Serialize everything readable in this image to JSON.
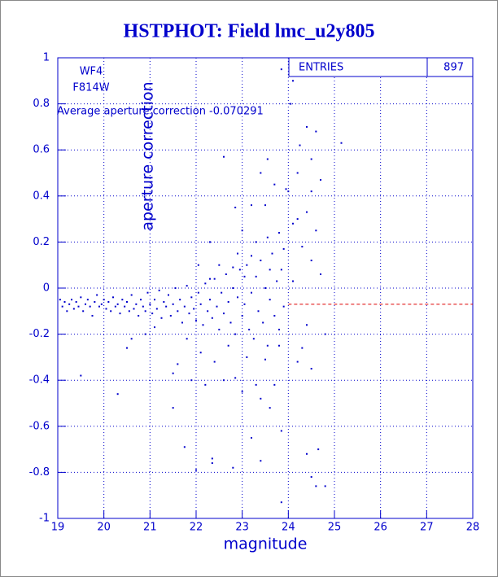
{
  "chart_data": {
    "type": "scatter",
    "title": "HSTPHOT: Field lmc_u2y805",
    "xlabel": "magnitude",
    "ylabel": "aperture correction",
    "annotations": [
      "WF4",
      "F814W",
      "Average aperture correction -0.070291"
    ],
    "stats": {
      "label": "ENTRIES",
      "value": 897
    },
    "mean_line": {
      "value": -0.070291,
      "x_start": 24,
      "color": "#dd0000"
    },
    "xlim": [
      19,
      28
    ],
    "ylim": [
      -1,
      1
    ],
    "xticks": [
      19,
      20,
      21,
      22,
      23,
      24,
      25,
      26,
      27,
      28
    ],
    "yticks": [
      -1,
      -0.8,
      -0.6,
      -0.4,
      -0.2,
      0,
      0.2,
      0.4,
      0.6,
      0.8,
      1
    ],
    "grid": true,
    "series": [
      {
        "color": "#0000cc",
        "x": [
          19.05,
          19.1,
          19.15,
          19.2,
          19.25,
          19.3,
          19.35,
          19.4,
          19.45,
          19.5,
          19.55,
          19.6,
          19.65,
          19.7,
          19.75,
          19.8,
          19.85,
          19.9,
          19.95,
          20.0,
          20.05,
          20.1,
          20.15,
          20.2,
          20.25,
          20.3,
          20.35,
          20.4,
          20.45,
          20.5,
          20.55,
          20.6,
          20.65,
          20.7,
          20.75,
          20.8,
          20.85,
          20.9,
          20.95,
          21.0,
          21.05,
          21.1,
          21.15,
          21.2,
          21.25,
          21.3,
          21.35,
          21.4,
          21.45,
          21.5,
          21.55,
          21.6,
          21.65,
          21.7,
          21.75,
          21.8,
          21.85,
          21.9,
          21.95,
          22.0,
          22.05,
          22.1,
          22.15,
          22.2,
          22.25,
          22.3,
          22.35,
          22.4,
          22.45,
          22.5,
          22.55,
          22.6,
          22.65,
          22.7,
          22.75,
          22.8,
          22.85,
          22.9,
          22.95,
          23.0,
          23.05,
          23.1,
          23.15,
          23.2,
          23.25,
          23.3,
          23.35,
          23.4,
          23.45,
          23.5,
          23.55,
          23.6,
          23.65,
          23.7,
          23.75,
          23.8,
          23.85,
          23.9,
          23.85,
          24.1,
          24.05,
          24.4,
          24.6,
          24.25,
          25.15,
          22.6,
          23.55,
          24.5,
          24.2,
          23.4,
          24.7,
          23.7,
          23.95,
          24.0,
          24.5,
          23.2,
          23.5,
          24.4,
          22.85,
          24.2,
          24.1,
          23.0,
          23.8,
          24.6,
          23.3,
          23.55,
          22.3,
          24.3,
          23.9,
          22.9,
          23.2,
          24.5,
          22.05,
          22.5,
          23.6,
          22.8,
          24.7,
          24.1,
          23.05,
          22.3,
          20.3,
          21.5,
          21.75,
          22.35,
          22.35,
          22.8,
          23.4,
          23.2,
          23.85,
          24.4,
          24.65,
          24.5,
          24.6,
          24.8,
          23.85,
          22.0,
          22.6,
          22.85,
          21.9,
          22.2,
          21.5,
          21.6,
          20.6,
          20.5,
          19.5,
          20.9,
          21.1,
          23.0,
          23.4,
          23.6,
          23.3,
          23.1,
          23.5,
          23.8,
          24.2,
          24.5,
          24.8,
          24.4,
          22.4,
          22.7,
          22.1,
          21.8,
          23.7,
          24.3
        ],
        "y": [
          -0.05,
          -0.08,
          -0.06,
          -0.1,
          -0.07,
          -0.05,
          -0.09,
          -0.06,
          -0.08,
          -0.04,
          -0.1,
          -0.07,
          -0.05,
          -0.08,
          -0.12,
          -0.06,
          -0.03,
          -0.08,
          -0.07,
          -0.05,
          -0.09,
          -0.06,
          -0.1,
          -0.04,
          -0.08,
          -0.07,
          -0.11,
          -0.05,
          -0.08,
          -0.06,
          -0.1,
          -0.03,
          -0.09,
          -0.07,
          -0.12,
          -0.05,
          -0.08,
          -0.1,
          -0.02,
          -0.07,
          -0.11,
          -0.05,
          -0.09,
          -0.01,
          -0.13,
          -0.06,
          -0.08,
          -0.03,
          -0.12,
          -0.07,
          0.0,
          -0.1,
          -0.05,
          -0.15,
          -0.08,
          0.01,
          -0.11,
          -0.04,
          -0.09,
          -0.14,
          -0.02,
          -0.07,
          -0.16,
          0.02,
          -0.1,
          -0.05,
          -0.13,
          0.04,
          -0.08,
          -0.18,
          -0.02,
          -0.11,
          0.06,
          -0.06,
          -0.15,
          0.0,
          -0.2,
          -0.04,
          0.08,
          -0.12,
          -0.07,
          0.1,
          -0.18,
          -0.02,
          -0.22,
          0.05,
          -0.1,
          0.12,
          -0.15,
          0.0,
          -0.25,
          -0.05,
          0.15,
          -0.12,
          0.03,
          -0.18,
          0.08,
          -0.08,
          0.95,
          0.9,
          0.8,
          0.7,
          0.68,
          0.62,
          0.63,
          0.57,
          0.56,
          0.56,
          0.5,
          0.5,
          0.47,
          0.45,
          0.43,
          0.42,
          0.42,
          0.36,
          0.36,
          0.33,
          0.35,
          0.3,
          0.28,
          0.25,
          0.24,
          0.25,
          0.2,
          0.22,
          0.2,
          0.18,
          0.17,
          0.15,
          0.14,
          0.12,
          0.1,
          0.1,
          0.08,
          0.09,
          0.06,
          0.03,
          0.05,
          0.04,
          -0.46,
          -0.52,
          -0.69,
          -0.74,
          -0.76,
          -0.78,
          -0.75,
          -0.65,
          -0.62,
          -0.72,
          -0.7,
          -0.82,
          -0.86,
          -0.86,
          -0.93,
          -0.79,
          -0.4,
          -0.39,
          -0.4,
          -0.42,
          -0.37,
          -0.33,
          -0.22,
          -0.26,
          -0.38,
          -0.2,
          -0.17,
          -0.45,
          -0.48,
          -0.52,
          -0.42,
          -0.3,
          -0.31,
          -0.25,
          -0.32,
          -0.35,
          -0.2,
          -0.16,
          -0.32,
          -0.25,
          -0.28,
          -0.22,
          -0.42,
          -0.26
        ]
      }
    ]
  }
}
